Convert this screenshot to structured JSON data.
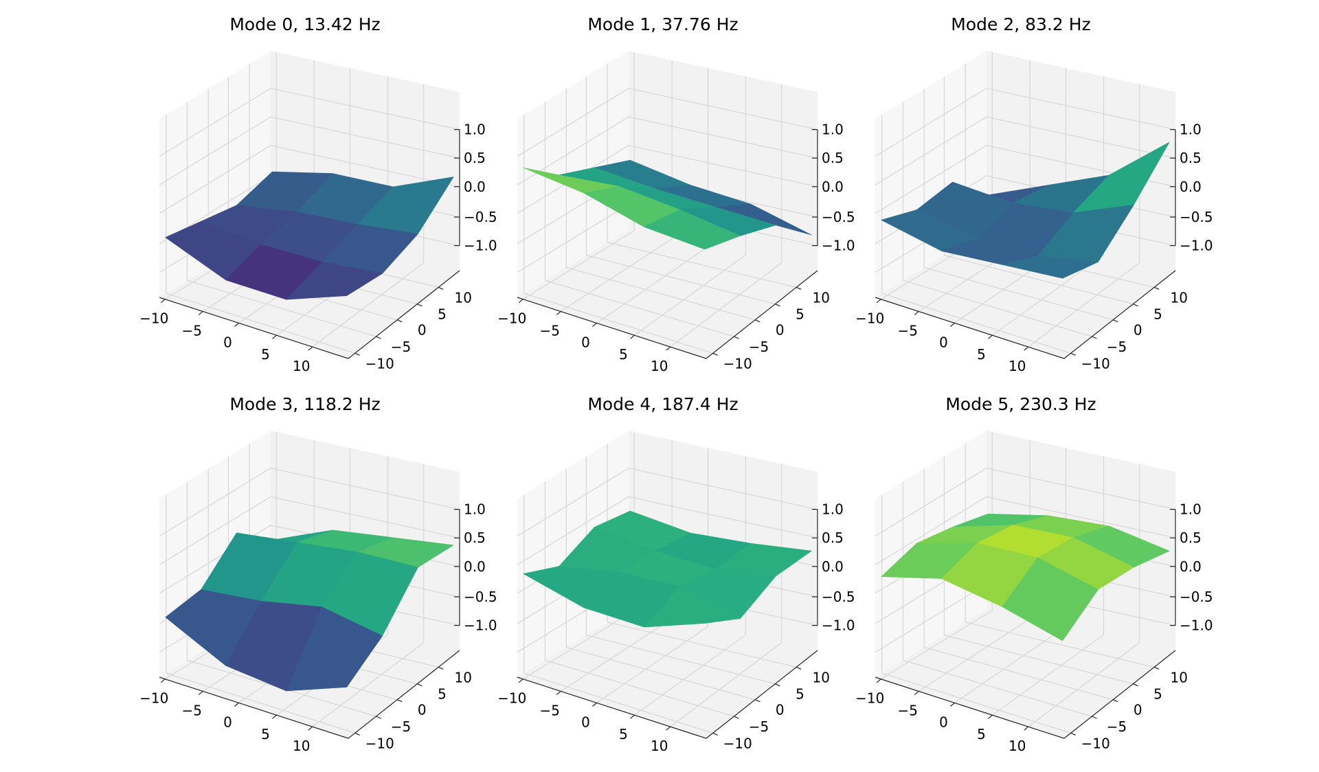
{
  "chart_data": [
    {
      "type": "surface3d",
      "title": "Mode 0, 13.42 Hz",
      "x_ticks": [
        "−10",
        "−5",
        "0",
        "5",
        "10"
      ],
      "y_ticks": [
        "10",
        "5",
        "0",
        "−5",
        "−10"
      ],
      "z_ticks": [
        "1.0",
        "0.5",
        "0.0",
        "−0.5",
        "−1.0"
      ],
      "xlim": [
        -12.5,
        12.5
      ],
      "ylim": [
        -12.5,
        12.5
      ],
      "zlim": [
        -1,
        1
      ],
      "colormap": "viridis",
      "grid_x": [
        -12,
        -4,
        4,
        12
      ],
      "grid_y": [
        -12,
        -4,
        4,
        12
      ],
      "z": [
        [
          -0.4,
          -0.8,
          -0.8,
          -0.4
        ],
        [
          -0.5,
          -0.6,
          -0.6,
          -0.5
        ],
        [
          -0.6,
          -0.45,
          -0.4,
          -0.3
        ],
        [
          -0.4,
          -0.2,
          -0.2,
          0.2
        ]
      ]
    },
    {
      "type": "surface3d",
      "title": "Mode 1, 37.76 Hz",
      "x_ticks": [
        "−10",
        "−5",
        "0",
        "5",
        "10"
      ],
      "y_ticks": [
        "10",
        "5",
        "0",
        "−5",
        "−10"
      ],
      "z_ticks": [
        "1.0",
        "0.5",
        "0.0",
        "−0.5",
        "−1.0"
      ],
      "xlim": [
        -12.5,
        12.5
      ],
      "ylim": [
        -12.5,
        12.5
      ],
      "zlim": [
        -1,
        1
      ],
      "colormap": "viridis",
      "grid_x": [
        -12,
        -4,
        4,
        12
      ],
      "grid_y": [
        -12,
        -4,
        4,
        12
      ],
      "z": [
        [
          0.8,
          0.7,
          0.45,
          0.4
        ],
        [
          0.3,
          0.4,
          0.3,
          0.15
        ],
        [
          0.05,
          -0.05,
          -0.1,
          -0.15
        ],
        [
          -0.2,
          -0.4,
          -0.5,
          -0.8
        ]
      ]
    },
    {
      "type": "surface3d",
      "title": "Mode 2, 83.2 Hz",
      "x_ticks": [
        "−10",
        "−5",
        "0",
        "5",
        "10"
      ],
      "y_ticks": [
        "10",
        "5",
        "0",
        "−5",
        "−10"
      ],
      "z_ticks": [
        "1.0",
        "0.5",
        "0.0",
        "−0.5",
        "−1.0"
      ],
      "xlim": [
        -12.5,
        12.5
      ],
      "ylim": [
        -12.5,
        12.5
      ],
      "zlim": [
        -1,
        1
      ],
      "colormap": "viridis",
      "grid_x": [
        -12,
        -4,
        4,
        12
      ],
      "grid_y": [
        -12,
        -4,
        4,
        12
      ],
      "z": [
        [
          -0.1,
          -0.3,
          -0.2,
          -0.1
        ],
        [
          -0.3,
          -0.5,
          -0.5,
          -0.3
        ],
        [
          -0.2,
          -0.3,
          -0.2,
          0.2
        ],
        [
          -0.8,
          -0.4,
          0.0,
          0.8
        ]
      ]
    },
    {
      "type": "surface3d",
      "title": "Mode 3, 118.2 Hz",
      "x_ticks": [
        "−10",
        "−5",
        "0",
        "5",
        "10"
      ],
      "y_ticks": [
        "10",
        "5",
        "0",
        "−5",
        "−10"
      ],
      "z_ticks": [
        "1.0",
        "0.5",
        "0.0",
        "−0.5",
        "−1.0"
      ],
      "xlim": [
        -12.5,
        12.5
      ],
      "ylim": [
        -12.5,
        12.5
      ],
      "zlim": [
        -1,
        1
      ],
      "colormap": "viridis",
      "grid_x": [
        -12,
        -4,
        4,
        12
      ],
      "grid_y": [
        -12,
        -4,
        4,
        12
      ],
      "z": [
        [
          -0.4,
          -0.9,
          -1.0,
          -0.6
        ],
        [
          -0.3,
          -0.2,
          0.0,
          -0.2
        ],
        [
          0.3,
          0.4,
          0.5,
          0.5
        ],
        [
          -0.2,
          0.2,
          0.3,
          0.4
        ]
      ]
    },
    {
      "type": "surface3d",
      "title": "Mode 4, 187.4 Hz",
      "x_ticks": [
        "−10",
        "−5",
        "0",
        "5",
        "10"
      ],
      "y_ticks": [
        "10",
        "5",
        "0",
        "−5",
        "−10"
      ],
      "z_ticks": [
        "1.0",
        "0.5",
        "0.0",
        "−0.5",
        "−1.0"
      ],
      "xlim": [
        -12.5,
        12.5
      ],
      "ylim": [
        -12.5,
        12.5
      ],
      "zlim": [
        -1,
        1
      ],
      "colormap": "viridis",
      "grid_x": [
        -12,
        -4,
        4,
        12
      ],
      "grid_y": [
        -12,
        -4,
        4,
        12
      ],
      "z": [
        [
          0.35,
          0.1,
          0.1,
          0.5
        ],
        [
          0.1,
          0.3,
          0.35,
          0.1
        ],
        [
          0.4,
          0.25,
          0.2,
          0.35
        ],
        [
          0.3,
          0.15,
          0.2,
          0.3
        ]
      ]
    },
    {
      "type": "surface3d",
      "title": "Mode 5, 230.3 Hz",
      "x_ticks": [
        "−10",
        "−5",
        "0",
        "5",
        "10"
      ],
      "y_ticks": [
        "10",
        "5",
        "0",
        "−5",
        "−10"
      ],
      "z_ticks": [
        "1.0",
        "0.5",
        "0.0",
        "−0.5",
        "−1.0"
      ],
      "xlim": [
        -12.5,
        12.5
      ],
      "ylim": [
        -12.5,
        12.5
      ],
      "zlim": [
        -1,
        1
      ],
      "colormap": "viridis",
      "grid_x": [
        -12,
        -4,
        4,
        12
      ],
      "grid_y": [
        -12,
        -4,
        4,
        12
      ],
      "z": [
        [
          0.3,
          0.6,
          0.45,
          0.2
        ],
        [
          0.5,
          0.8,
          0.85,
          0.6
        ],
        [
          0.4,
          0.7,
          0.75,
          0.5
        ],
        [
          0.25,
          0.45,
          0.5,
          0.3
        ]
      ]
    }
  ]
}
